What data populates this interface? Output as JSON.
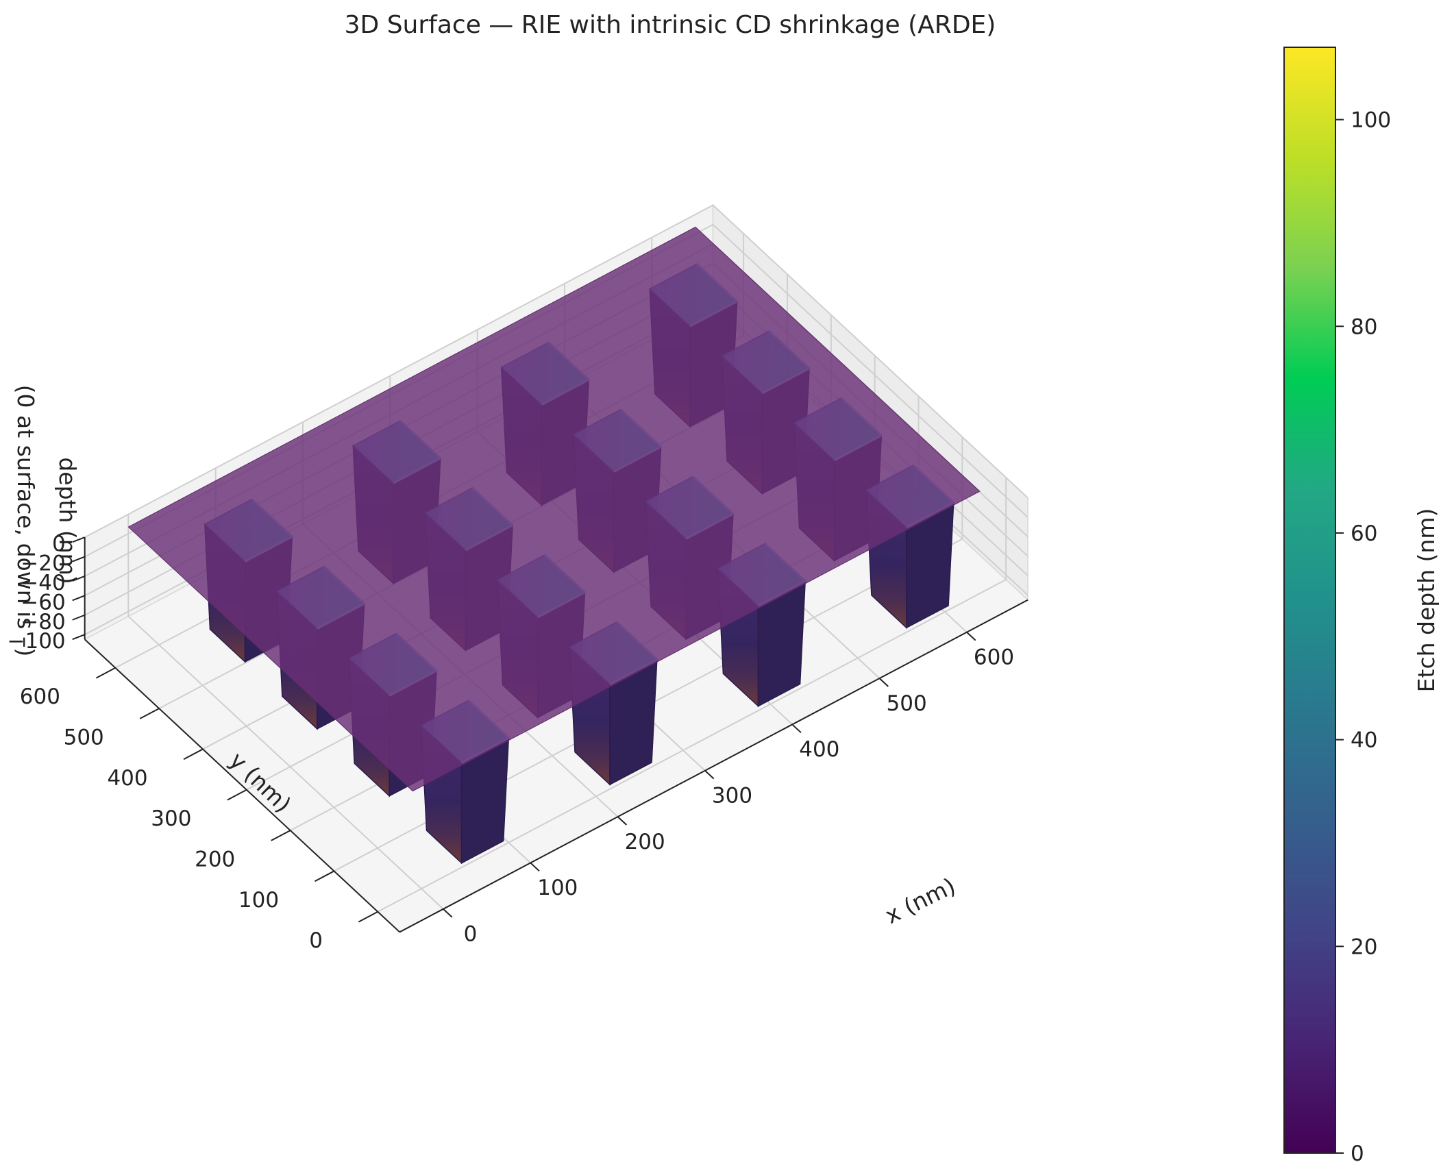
{
  "chart_data": {
    "type": "surface3d",
    "title": "3D Surface — RIE with intrinsic CD shrinkage (ARDE)",
    "xlabel": "x (nm)",
    "ylabel": "y (nm)",
    "zlabel_line1": "depth (nm)",
    "zlabel_line2": "(0 at surface, down is –)",
    "x_ticks": [
      "0",
      "100",
      "200",
      "300",
      "400",
      "500",
      "600"
    ],
    "y_ticks": [
      "0",
      "100",
      "200",
      "300",
      "400",
      "500",
      "600"
    ],
    "z_ticks": [
      "0",
      "−20",
      "−40",
      "−60",
      "−80",
      "−100"
    ],
    "z_tick_values": [
      0,
      -20,
      -40,
      -60,
      -80,
      -100
    ],
    "xlim": [
      -50,
      670
    ],
    "ylim": [
      -50,
      670
    ],
    "zlim": [
      -105,
      0
    ],
    "grid": true,
    "colormap": "viridis",
    "surface_color": "#6a2f76",
    "trench_array": {
      "rows": 4,
      "cols": 4,
      "trench_depth_nm": 107
    },
    "colorbar": {
      "label": "Etch depth (nm)",
      "ticks": [
        "0",
        "20",
        "40",
        "60",
        "80",
        "100"
      ],
      "tick_values": [
        0,
        20,
        40,
        60,
        80,
        100
      ],
      "range": [
        0,
        107
      ]
    }
  }
}
